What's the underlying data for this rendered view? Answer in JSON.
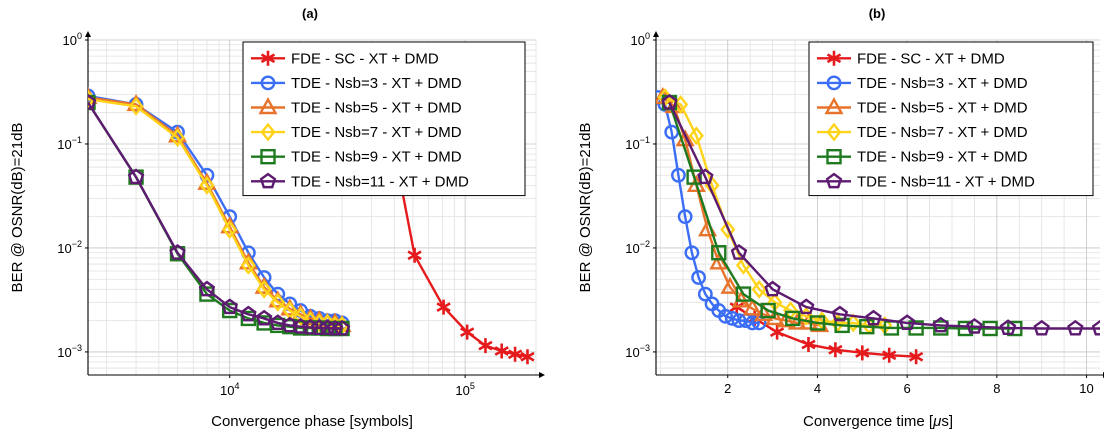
{
  "chart_data": [
    {
      "type": "line",
      "panel_title": "(a)",
      "xlabel": "Convergence phase [symbols]",
      "ylabel": "BER @ OSNR(dB)=21dB",
      "xscale": "log",
      "yscale": "log",
      "xlim": [
        2500,
        200000
      ],
      "ylim": [
        0.0006,
        1
      ],
      "x_ticks": [
        {
          "value": 10000,
          "base": "10",
          "exp": "4"
        },
        {
          "value": 100000,
          "base": "10",
          "exp": "5"
        }
      ],
      "y_ticks": [
        {
          "value": 1,
          "base": "10",
          "exp": "0"
        },
        {
          "value": 0.1,
          "base": "10",
          "exp": "−1"
        },
        {
          "value": 0.01,
          "base": "10",
          "exp": "−2"
        },
        {
          "value": 0.001,
          "base": "10",
          "exp": "−3"
        }
      ],
      "grid": true,
      "legend_position": "top-right",
      "series": [
        {
          "name": "FDE - SC - XT + DMD",
          "color": "#e41a1c",
          "marker": "asterisk",
          "x": [
            33000,
            41000,
            51000,
            61000,
            81000,
            102000,
            122000,
            143000,
            163000,
            184000
          ],
          "y": [
            0.3,
            0.3,
            0.07,
            0.0085,
            0.0027,
            0.00155,
            0.00115,
            0.00102,
            0.00095,
            0.0009
          ]
        },
        {
          "name": "TDE - Nsb=3 - XT + DMD",
          "color": "#3b6ef5",
          "marker": "circle",
          "x": [
            2500,
            4000,
            6000,
            8000,
            10000,
            12000,
            14000,
            16000,
            18000,
            20000,
            22000,
            24000,
            26000,
            28000,
            30000
          ],
          "y": [
            0.29,
            0.24,
            0.13,
            0.05,
            0.02,
            0.009,
            0.0052,
            0.0036,
            0.0029,
            0.0025,
            0.0022,
            0.0021,
            0.002,
            0.002,
            0.0019
          ]
        },
        {
          "name": "TDE - Nsb=5 - XT + DMD",
          "color": "#e8742c",
          "marker": "triangle",
          "x": [
            2500,
            4000,
            6000,
            8000,
            10000,
            12000,
            14000,
            16000,
            18000,
            20000,
            22000,
            24000,
            26000,
            28000,
            30000
          ],
          "y": [
            0.28,
            0.24,
            0.12,
            0.042,
            0.016,
            0.0072,
            0.0042,
            0.0031,
            0.0026,
            0.0023,
            0.0021,
            0.002,
            0.0019,
            0.0019,
            0.0018
          ]
        },
        {
          "name": "TDE - Nsb=7 - XT + DMD",
          "color": "#ffd319",
          "marker": "diamond",
          "x": [
            2500,
            4000,
            6000,
            8000,
            10000,
            12000,
            14000,
            16000,
            18000,
            20000,
            22000,
            24000,
            26000,
            28000,
            30000
          ],
          "y": [
            0.27,
            0.23,
            0.115,
            0.04,
            0.015,
            0.0068,
            0.004,
            0.003,
            0.0025,
            0.0022,
            0.002,
            0.0019,
            0.0019,
            0.0018,
            0.0018
          ]
        },
        {
          "name": "TDE - Nsb=9 - XT + DMD",
          "color": "#1f7a1f",
          "marker": "square",
          "x": [
            2500,
            4000,
            6000,
            8000,
            10000,
            12000,
            14000,
            16000,
            18000,
            20000,
            22000,
            24000,
            26000,
            28000,
            30000
          ],
          "y": [
            0.25,
            0.048,
            0.0088,
            0.0036,
            0.0025,
            0.0021,
            0.0019,
            0.0018,
            0.00175,
            0.0017,
            0.0017,
            0.0017,
            0.00168,
            0.00168,
            0.00168
          ]
        },
        {
          "name": "TDE - Nsb=11 - XT + DMD",
          "color": "#5c1a70",
          "marker": "pentagon",
          "x": [
            2500,
            4000,
            6000,
            8000,
            10000,
            12000,
            14000,
            16000,
            18000,
            20000,
            22000,
            24000,
            26000,
            28000,
            30000
          ],
          "y": [
            0.25,
            0.048,
            0.009,
            0.004,
            0.0027,
            0.0023,
            0.0021,
            0.0019,
            0.0018,
            0.00175,
            0.00172,
            0.0017,
            0.0017,
            0.00168,
            0.00168
          ]
        }
      ]
    },
    {
      "type": "line",
      "panel_title": "(b)",
      "xlabel": "Convergence time [μs]",
      "xlabel_parts": {
        "pre": "Convergence time [",
        "mu": "μ",
        "post": "s]"
      },
      "ylabel": "BER @ OSNR(dB)=21dB",
      "xscale": "linear",
      "yscale": "log",
      "xlim": [
        0.4,
        10.3
      ],
      "ylim": [
        0.0006,
        1
      ],
      "x_ticks": [
        {
          "value": 2,
          "label": "2"
        },
        {
          "value": 4,
          "label": "4"
        },
        {
          "value": 6,
          "label": "6"
        },
        {
          "value": 8,
          "label": "8"
        },
        {
          "value": 10,
          "label": "10"
        }
      ],
      "y_ticks": [
        {
          "value": 1,
          "base": "10",
          "exp": "0"
        },
        {
          "value": 0.1,
          "base": "10",
          "exp": "−1"
        },
        {
          "value": 0.01,
          "base": "10",
          "exp": "−2"
        },
        {
          "value": 0.001,
          "base": "10",
          "exp": "−3"
        }
      ],
      "grid": true,
      "legend_position": "top-right",
      "series": [
        {
          "name": "FDE - SC - XT + DMD",
          "color": "#e41a1c",
          "marker": "asterisk",
          "x": [
            2.2,
            2.6,
            3.1,
            3.8,
            4.4,
            5.0,
            5.6,
            6.2
          ],
          "y": [
            0.0027,
            0.0021,
            0.00155,
            0.00118,
            0.00105,
            0.00098,
            0.00093,
            0.0009
          ]
        },
        {
          "name": "TDE - Nsb=3 - XT + DMD",
          "color": "#3b6ef5",
          "marker": "circle",
          "x": [
            0.45,
            0.6,
            0.75,
            0.9,
            1.05,
            1.2,
            1.35,
            1.5,
            1.65,
            1.8,
            1.95,
            2.1,
            2.25,
            2.4,
            2.55,
            2.7
          ],
          "y": [
            0.28,
            0.24,
            0.13,
            0.05,
            0.02,
            0.009,
            0.0052,
            0.0036,
            0.0029,
            0.0025,
            0.0022,
            0.0021,
            0.002,
            0.002,
            0.0019,
            0.0019
          ]
        },
        {
          "name": "TDE - Nsb=5 - XT + DMD",
          "color": "#e8742c",
          "marker": "triangle",
          "x": [
            0.55,
            0.8,
            1.05,
            1.3,
            1.55,
            1.8,
            2.05,
            2.3,
            2.55,
            2.8,
            3.05,
            3.3,
            3.55,
            3.8,
            4.05
          ],
          "y": [
            0.28,
            0.23,
            0.11,
            0.04,
            0.015,
            0.0072,
            0.0042,
            0.0031,
            0.0026,
            0.0023,
            0.0021,
            0.002,
            0.0019,
            0.0019,
            0.0018
          ]
        },
        {
          "name": "TDE - Nsb=7 - XT + DMD",
          "color": "#ffd319",
          "marker": "diamond",
          "x": [
            0.6,
            0.95,
            1.3,
            1.65,
            2.0,
            2.35,
            2.7,
            3.05,
            3.4,
            3.75,
            4.1,
            4.45,
            4.8,
            5.15,
            5.5
          ],
          "y": [
            0.28,
            0.24,
            0.12,
            0.04,
            0.015,
            0.0068,
            0.004,
            0.003,
            0.0025,
            0.0022,
            0.002,
            0.0019,
            0.0019,
            0.0018,
            0.0018
          ]
        },
        {
          "name": "TDE - Nsb=9 - XT + DMD",
          "color": "#1f7a1f",
          "marker": "square",
          "x": [
            0.7,
            1.25,
            1.8,
            2.35,
            2.9,
            3.45,
            4.0,
            4.55,
            5.1,
            5.65,
            6.2,
            6.75,
            7.3,
            7.85,
            8.4
          ],
          "y": [
            0.25,
            0.048,
            0.009,
            0.0036,
            0.0025,
            0.0021,
            0.0019,
            0.0018,
            0.00175,
            0.0017,
            0.0017,
            0.0017,
            0.00168,
            0.00168,
            0.00168
          ]
        },
        {
          "name": "TDE - Nsb=11 - XT + DMD",
          "color": "#5c1a70",
          "marker": "pentagon",
          "x": [
            0.7,
            1.5,
            2.25,
            3.0,
            3.75,
            4.5,
            5.25,
            6.0,
            6.75,
            7.5,
            8.25,
            9.0,
            9.75,
            10.3
          ],
          "y": [
            0.25,
            0.048,
            0.009,
            0.004,
            0.0027,
            0.0023,
            0.0021,
            0.0019,
            0.0018,
            0.00175,
            0.0017,
            0.00168,
            0.00168,
            0.00168
          ]
        }
      ]
    }
  ]
}
